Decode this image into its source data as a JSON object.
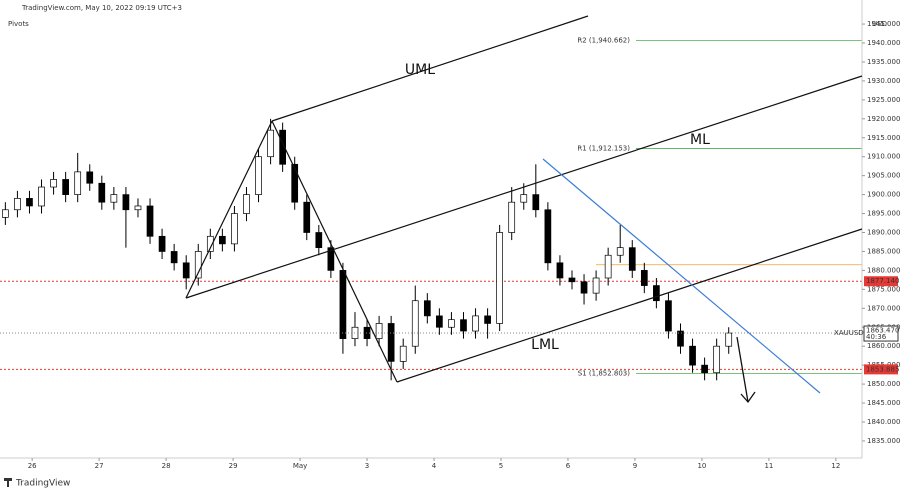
{
  "header": {
    "source": "TradingView.com, May 10, 2022 09:19 UTC+3",
    "indicator": "Pivots",
    "currency": "USD",
    "brand": "TradingView"
  },
  "chart_data": {
    "type": "candlestick",
    "x": [
      -0.4,
      -0.22,
      -0.04,
      0.14,
      0.32,
      0.5,
      0.68,
      0.86,
      1.04,
      1.22,
      1.4,
      1.58,
      1.76,
      1.94,
      2.12,
      2.3,
      2.48,
      2.66,
      2.84,
      3.02,
      3.2,
      3.38,
      3.56,
      3.74,
      3.92,
      4.1,
      4.28,
      4.46,
      4.64,
      4.82,
      5,
      5.18,
      5.36,
      5.54,
      5.72,
      5.9,
      6.08,
      6.26,
      6.44,
      6.62,
      6.8,
      6.98,
      7.16,
      7.34,
      7.52,
      7.7,
      7.88,
      8.06,
      8.24,
      8.42,
      8.6,
      8.78,
      8.96,
      9.14,
      9.32,
      9.5,
      9.68,
      9.86,
      10.04,
      10.22,
      10.4
    ],
    "open": [
      1894,
      1896,
      1899,
      1897,
      1902,
      1904,
      1900,
      1906,
      1903,
      1898,
      1900,
      1896,
      1897,
      1889,
      1885,
      1882,
      1878,
      1885,
      1889,
      1887,
      1895,
      1900,
      1910,
      1917,
      1908,
      1898,
      1890,
      1886,
      1880,
      1862,
      1865,
      1862,
      1866,
      1856,
      1860,
      1872,
      1868,
      1865,
      1867,
      1864,
      1868,
      1866,
      1890,
      1898,
      1900,
      1896,
      1882,
      1878,
      1877,
      1874,
      1878,
      1884,
      1886,
      1880,
      1876,
      1872,
      1864,
      1860,
      1855,
      1853,
      1860
    ],
    "high": [
      1898,
      1901,
      1901,
      1904,
      1906,
      1906,
      1911,
      1908,
      1905,
      1902,
      1902,
      1899,
      1899,
      1891,
      1887,
      1884,
      1887,
      1891,
      1891,
      1897,
      1902,
      1912,
      1920,
      1919,
      1910,
      1900,
      1892,
      1888,
      1882,
      1869,
      1867,
      1868,
      1868,
      1862,
      1876,
      1874,
      1870,
      1869,
      1869,
      1870,
      1870,
      1892,
      1902,
      1903,
      1908,
      1898,
      1884,
      1880,
      1879,
      1880,
      1886,
      1892,
      1888,
      1882,
      1878,
      1874,
      1866,
      1862,
      1857,
      1862,
      1865
    ],
    "low": [
      1892,
      1894,
      1895,
      1895,
      1900,
      1898,
      1898,
      1901,
      1896,
      1896,
      1886,
      1894,
      1887,
      1883,
      1880,
      1875,
      1876,
      1883,
      1885,
      1885,
      1893,
      1898,
      1908,
      1906,
      1896,
      1888,
      1884,
      1878,
      1858,
      1860,
      1860,
      1860,
      1851,
      1854,
      1858,
      1866,
      1863,
      1863,
      1862,
      1862,
      1862,
      1864,
      1888,
      1896,
      1894,
      1880,
      1876,
      1875,
      1871,
      1872,
      1876,
      1882,
      1878,
      1874,
      1870,
      1862,
      1858,
      1853,
      1851,
      1851,
      1858
    ],
    "close": [
      1896,
      1899,
      1897,
      1902,
      1904,
      1900,
      1906,
      1903,
      1898,
      1900,
      1896,
      1897,
      1889,
      1885,
      1882,
      1878,
      1885,
      1889,
      1887,
      1895,
      1900,
      1910,
      1917,
      1908,
      1898,
      1890,
      1886,
      1880,
      1862,
      1865,
      1862,
      1866,
      1856,
      1860,
      1872,
      1868,
      1865,
      1867,
      1864,
      1868,
      1866,
      1890,
      1898,
      1900,
      1896,
      1882,
      1878,
      1877,
      1874,
      1878,
      1884,
      1886,
      1880,
      1876,
      1872,
      1864,
      1860,
      1855,
      1853,
      1860,
      1863.47
    ],
    "up_color": "#ffffff",
    "down_color": "#000000",
    "wick_color": "#000000",
    "xlim": [
      -0.48,
      12.39
    ],
    "xticks": [
      {
        "value": 0,
        "label": "26"
      },
      {
        "value": 1,
        "label": "27"
      },
      {
        "value": 2,
        "label": "28"
      },
      {
        "value": 3,
        "label": "29"
      },
      {
        "value": 4,
        "label": "May"
      },
      {
        "value": 5,
        "label": "3"
      },
      {
        "value": 6,
        "label": "4"
      },
      {
        "value": 7,
        "label": "5"
      },
      {
        "value": 8,
        "label": "6"
      },
      {
        "value": 9,
        "label": "9"
      },
      {
        "value": 10,
        "label": "10"
      },
      {
        "value": 11,
        "label": "11"
      },
      {
        "value": 12,
        "label": "12"
      }
    ],
    "ylim": [
      1830.5,
      1951.35
    ],
    "yticks": [
      {
        "value": 1835,
        "label": "1835.000"
      },
      {
        "value": 1840,
        "label": "1840.000"
      },
      {
        "value": 1845,
        "label": "1845.000"
      },
      {
        "value": 1850,
        "label": "1850.000"
      },
      {
        "value": 1855,
        "label": "1855.000"
      },
      {
        "value": 1860,
        "label": "1860.000"
      },
      {
        "value": 1865,
        "label": "1865.000"
      },
      {
        "value": 1870,
        "label": "1870.000"
      },
      {
        "value": 1875,
        "label": "1875.000"
      },
      {
        "value": 1880,
        "label": "1880.000"
      },
      {
        "value": 1885,
        "label": "1885.000"
      },
      {
        "value": 1890,
        "label": "1890.000"
      },
      {
        "value": 1895,
        "label": "1895.000"
      },
      {
        "value": 1900,
        "label": "1900.000"
      },
      {
        "value": 1905,
        "label": "1905.000"
      },
      {
        "value": 1910,
        "label": "1910.000"
      },
      {
        "value": 1915,
        "label": "1915.000"
      },
      {
        "value": 1920,
        "label": "1920.000"
      },
      {
        "value": 1925,
        "label": "1925.000"
      },
      {
        "value": 1930,
        "label": "1930.000"
      },
      {
        "value": 1935,
        "label": "1935.000"
      },
      {
        "value": 1940,
        "label": "1940.000"
      },
      {
        "value": 1945,
        "label": "1945.000"
      }
    ],
    "pivots": [
      {
        "label": "R2 (1,940.662)",
        "value": 1940.662,
        "color": "#4caf50"
      },
      {
        "label": "R1 (1,912.153)",
        "value": 1912.153,
        "color": "#4caf50"
      },
      {
        "value": 1881.5,
        "color": "#f0a030"
      },
      {
        "label": "S1 (1,852.803)",
        "value": 1852.803,
        "color": "#4caf50"
      }
    ],
    "levels": [
      {
        "value": 1877.14,
        "label": "1877.140",
        "color": "#e53935"
      },
      {
        "value": 1853.885,
        "label": "1853.885",
        "color": "#e53935"
      }
    ],
    "last": {
      "symbol": "XAUUSD",
      "value": 1863.47,
      "label": "1863.470",
      "countdown": "40:36"
    },
    "annotations": {
      "uml": "UML",
      "ml": "ML",
      "lml": "LML"
    }
  }
}
